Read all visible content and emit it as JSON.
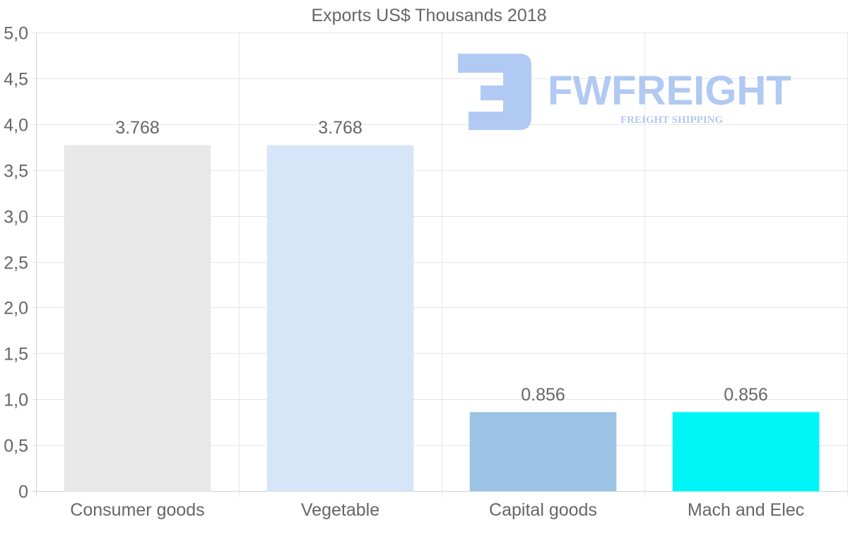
{
  "chart_data": {
    "type": "bar",
    "title": "Exports US$ Thousands 2018",
    "xlabel": "",
    "ylabel": "",
    "categories": [
      "Consumer goods",
      "Vegetable",
      "Capital goods",
      "Mach and Elec"
    ],
    "values": [
      3.768,
      3.768,
      0.856,
      0.856
    ],
    "value_labels": [
      "3.768",
      "3.768",
      "0.856",
      "0.856"
    ],
    "colors": [
      "#e8e8e8",
      "#d6e6f8",
      "#9ac3e6",
      "#00f6f6"
    ],
    "ylim": [
      0,
      5
    ],
    "yticks": [
      0,
      0.5,
      1,
      1.5,
      2,
      2.5,
      3,
      3.5,
      4,
      4.5,
      5
    ],
    "ytick_labels": [
      "0",
      "0,5",
      "1,0",
      "1,5",
      "2,0",
      "2,5",
      "3,0",
      "3,5",
      "4,0",
      "4,5",
      "5,0"
    ],
    "grid": true,
    "legend": "none"
  },
  "watermark": {
    "brand": "FWFREIGHT",
    "tagline": "FREIGHT SHIPPING",
    "icon": "fwfreight-logo-icon",
    "color": "#a9c4f2"
  }
}
